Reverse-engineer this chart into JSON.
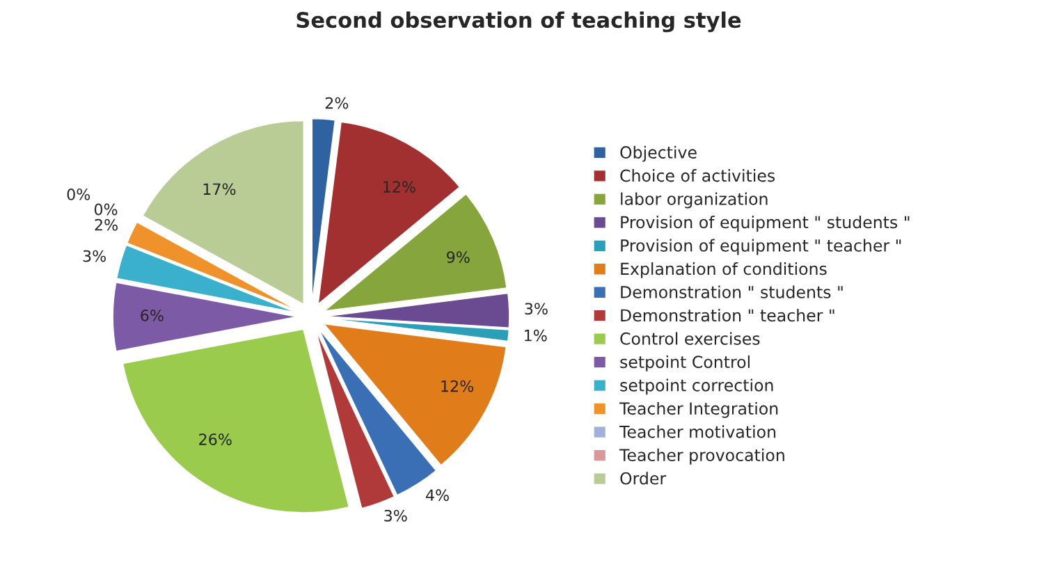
{
  "chart_data": {
    "type": "pie",
    "title": "Second observation of teaching style",
    "categories": [
      "Objective",
      "Choice of activities",
      "labor organization",
      "Provision of equipment \" students \"",
      "Provision of equipment \" teacher \"",
      "Explanation of conditions",
      "Demonstration \" students \"",
      "Demonstration \" teacher \"",
      "Control exercises",
      "setpoint Control",
      "setpoint correction",
      "Teacher Integration",
      "Teacher motivation",
      "Teacher provocation",
      "Order"
    ],
    "values": [
      2,
      12,
      9,
      3,
      1,
      12,
      4,
      3,
      26,
      6,
      3,
      2,
      0,
      0,
      17
    ],
    "value_labels": [
      "2%",
      "12%",
      "9%",
      "3%",
      "1%",
      "12%",
      "4%",
      "3%",
      "26%",
      "6%",
      "3%",
      "2%",
      "0%",
      "0%",
      "17%"
    ],
    "colors": [
      "#2e62a0",
      "#a33030",
      "#86a53c",
      "#6a4a90",
      "#2b9fb8",
      "#e07c1a",
      "#3a6fb5",
      "#b03a3a",
      "#9acb4d",
      "#7d5aa6",
      "#3bb0cc",
      "#f0922c",
      "#9fb1d8",
      "#d9999a",
      "#b9cc96"
    ],
    "legend": "right"
  }
}
